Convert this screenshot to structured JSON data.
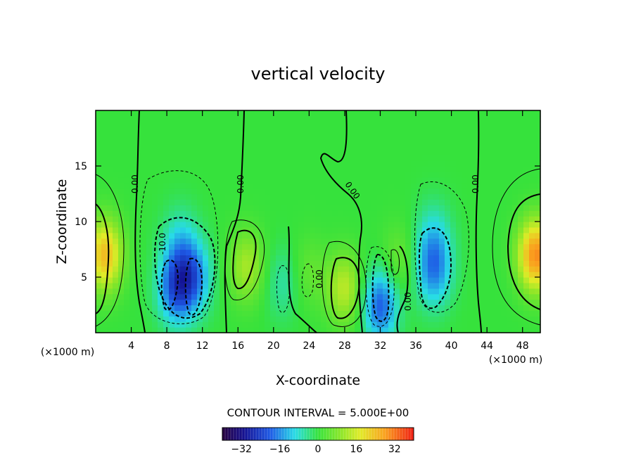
{
  "chart_data": {
    "type": "heatmap",
    "title": "vertical velocity",
    "xlabel": "X-coordinate",
    "ylabel": "Z-coordinate",
    "x_unit_left": "(×1000 m)",
    "x_unit_right": "(×1000 m)",
    "xlim": [
      0,
      50
    ],
    "ylim": [
      0,
      20
    ],
    "x_ticks": [
      "4",
      "8",
      "12",
      "16",
      "20",
      "24",
      "28",
      "32",
      "36",
      "40",
      "44",
      "48"
    ],
    "y_ticks": [
      "5",
      "10",
      "15"
    ],
    "contour_interval_label": "CONTOUR INTERVAL = 5.000E+00",
    "contour_labels": [
      "0.00",
      "0.00",
      "0.00",
      "0.00",
      "-10.0",
      "0.00",
      "0.00"
    ],
    "colorbar_ticks": [
      "-32",
      "-16",
      "0",
      "16",
      "32"
    ],
    "colorbar_range": [
      -40,
      40
    ],
    "features": [
      {
        "x": 1.0,
        "z": 7.0,
        "w": 24
      },
      {
        "x": 9.0,
        "z": 4.0,
        "w": -20
      },
      {
        "x": 11.0,
        "z": 5.0,
        "w": -16
      },
      {
        "x": 9.5,
        "z": 8.0,
        "w": -9
      },
      {
        "x": 17.0,
        "z": 6.0,
        "w": 12
      },
      {
        "x": 21.0,
        "z": 4.5,
        "w": -6
      },
      {
        "x": 24.0,
        "z": 5.5,
        "w": 5
      },
      {
        "x": 28.0,
        "z": 4.0,
        "w": 14
      },
      {
        "x": 32.0,
        "z": 2.5,
        "w": -20
      },
      {
        "x": 34.0,
        "z": 6.5,
        "w": 6
      },
      {
        "x": 38.0,
        "z": 5.5,
        "w": -15
      },
      {
        "x": 38.0,
        "z": 8.5,
        "w": -9
      },
      {
        "x": 49.5,
        "z": 7.0,
        "w": 30
      }
    ]
  }
}
